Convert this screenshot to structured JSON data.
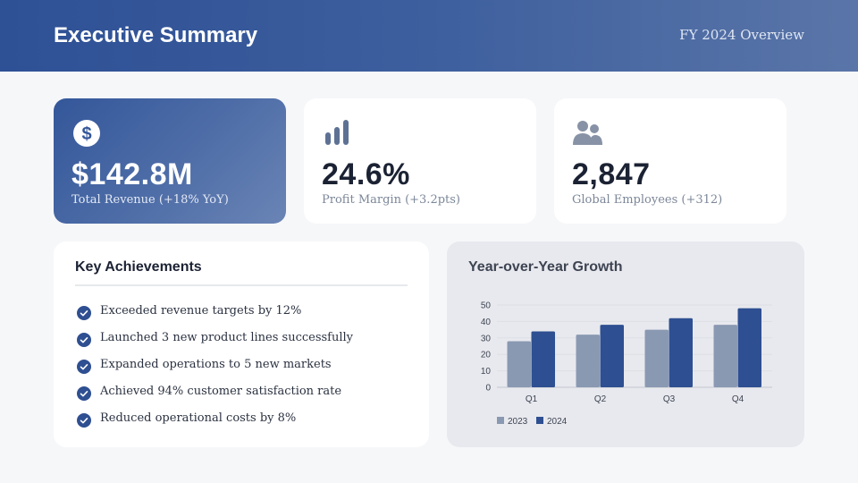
{
  "header": {
    "title": "Executive Summary",
    "subtitle": "FY 2024 Overview"
  },
  "kpis": [
    {
      "icon": "dollar-circle-icon",
      "value": "$142.8M",
      "label": "Total Revenue (+18% YoY)"
    },
    {
      "icon": "bar-chart-icon",
      "value": "24.6%",
      "label": "Profit Margin (+3.2pts)"
    },
    {
      "icon": "users-icon",
      "value": "2,847",
      "label": "Global Employees (+312)"
    }
  ],
  "achievements": {
    "title": "Key Achievements",
    "items": [
      "Exceeded revenue targets by 12%",
      "Launched 3 new product lines successfully",
      "Expanded operations to 5 new markets",
      "Achieved 94% customer satisfaction rate",
      "Reduced operational costs by 8%"
    ]
  },
  "colors": {
    "brand": "#2e5095",
    "series_2023": "#8a99b2",
    "series_2024": "#2e4f91",
    "check": "#2e4f91"
  },
  "chart_data": {
    "type": "bar",
    "title": "Year-over-Year Growth",
    "categories": [
      "Q1",
      "Q2",
      "Q3",
      "Q4"
    ],
    "series": [
      {
        "name": "2023",
        "values": [
          28,
          32,
          35,
          38
        ]
      },
      {
        "name": "2024",
        "values": [
          34,
          38,
          42,
          48
        ]
      }
    ],
    "ylim": [
      0,
      50
    ],
    "yticks": [
      0,
      10,
      20,
      30,
      40,
      50
    ],
    "xlabel": "",
    "ylabel": "",
    "grid": true,
    "legend": "bottom-left"
  }
}
